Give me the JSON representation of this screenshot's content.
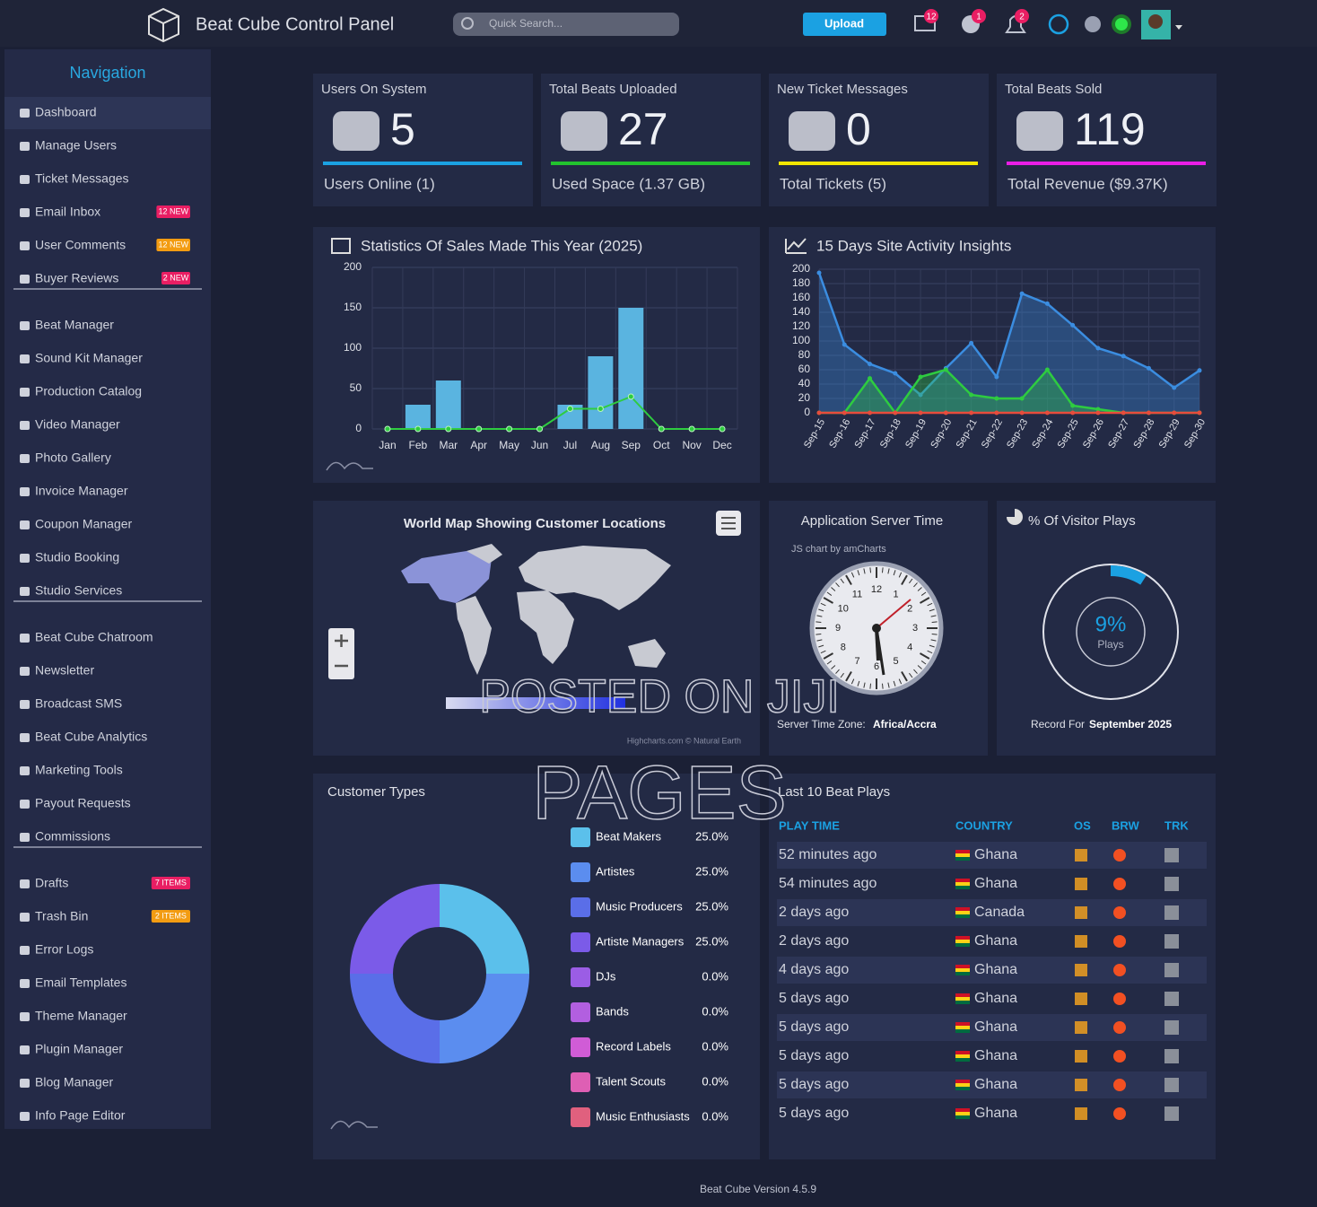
{
  "header": {
    "title": "Beat Cube Control Panel",
    "search_placeholder": "Quick Search...",
    "upload": "Upload",
    "badges": [
      12,
      1,
      2
    ]
  },
  "sidebar": {
    "title": "Navigation",
    "groups": [
      [
        {
          "label": "Dashboard"
        },
        {
          "label": "Manage Users"
        },
        {
          "label": "Ticket Messages"
        },
        {
          "label": "Email Inbox",
          "badge": "12 NEW",
          "badge_color": "#e91e63"
        },
        {
          "label": "User Comments",
          "badge": "12 NEW",
          "badge_color": "#f39c12"
        },
        {
          "label": "Buyer Reviews",
          "badge": "2 NEW",
          "badge_color": "#e91e63"
        }
      ],
      [
        {
          "label": "Beat Manager"
        },
        {
          "label": "Sound Kit Manager"
        },
        {
          "label": "Production Catalog"
        },
        {
          "label": "Video Manager"
        },
        {
          "label": "Photo Gallery"
        },
        {
          "label": "Invoice Manager"
        },
        {
          "label": "Coupon Manager"
        },
        {
          "label": "Studio Booking"
        },
        {
          "label": "Studio Services"
        }
      ],
      [
        {
          "label": "Beat Cube Chatroom"
        },
        {
          "label": "Newsletter"
        },
        {
          "label": "Broadcast SMS"
        },
        {
          "label": "Beat Cube Analytics"
        },
        {
          "label": "Marketing Tools"
        },
        {
          "label": "Payout Requests"
        },
        {
          "label": "Commissions"
        }
      ],
      [
        {
          "label": "Drafts",
          "badge": "7 ITEMS",
          "badge_color": "#e91e63"
        },
        {
          "label": "Trash Bin",
          "badge": "2 ITEMS",
          "badge_color": "#f39c12"
        },
        {
          "label": "Error Logs"
        },
        {
          "label": "Email Templates"
        },
        {
          "label": "Theme Manager"
        },
        {
          "label": "Plugin Manager"
        },
        {
          "label": "Blog Manager"
        },
        {
          "label": "Info Page Editor"
        }
      ]
    ]
  },
  "stats": [
    {
      "title": "Users On System",
      "value": 5,
      "footer": "Users Online (1)",
      "color": "#1ba1e2"
    },
    {
      "title": "Total Beats Uploaded",
      "value": 27,
      "footer": "Used Space (1.37 GB)",
      "color": "#22c32e"
    },
    {
      "title": "New Ticket Messages",
      "value": 0,
      "footer": "Total Tickets (5)",
      "color": "#f2e600"
    },
    {
      "title": "Total Beats Sold",
      "value": 119,
      "footer": "Total Revenue ($9.37K)",
      "color": "#e91ee6"
    }
  ],
  "sales_chart": {
    "type": "bar",
    "title": "Statistics Of Sales Made This Year (2025)",
    "categories": [
      "Jan",
      "Feb",
      "Mar",
      "Apr",
      "May",
      "Jun",
      "Jul",
      "Aug",
      "Sep",
      "Oct",
      "Nov",
      "Dec"
    ],
    "series": [
      {
        "type": "bar",
        "color": "#5ab4e0",
        "values": [
          0,
          30,
          60,
          0,
          0,
          0,
          30,
          90,
          150,
          0,
          0,
          0
        ]
      },
      {
        "type": "line",
        "color": "#2ecc40",
        "values": [
          0,
          0,
          0,
          0,
          0,
          0,
          25,
          25,
          40,
          0,
          0,
          0
        ]
      }
    ],
    "ylim": [
      0,
      200
    ],
    "yticks": [
      0,
      50,
      100,
      150,
      200
    ],
    "grid": true
  },
  "activity_chart": {
    "type": "area",
    "title": "15 Days Site Activity Insights",
    "x": [
      "Sep-15",
      "Sep-16",
      "Sep-17",
      "Sep-18",
      "Sep-19",
      "Sep-20",
      "Sep-21",
      "Sep-22",
      "Sep-23",
      "Sep-24",
      "Sep-25",
      "Sep-26",
      "Sep-27",
      "Sep-28",
      "Sep-29",
      "Sep-30"
    ],
    "series": [
      {
        "color": "#3b8de0",
        "values": [
          195,
          95,
          68,
          55,
          25,
          62,
          97,
          50,
          166,
          152,
          122,
          90,
          79,
          62,
          35,
          59
        ]
      },
      {
        "color": "#2ecc40",
        "values": [
          0,
          0,
          48,
          0,
          50,
          60,
          25,
          20,
          20,
          60,
          10,
          5,
          0,
          0,
          0,
          0
        ]
      },
      {
        "color": "#e74c3c",
        "values": [
          0,
          0,
          0,
          0,
          0,
          0,
          0,
          0,
          0,
          0,
          0,
          0,
          0,
          0,
          0,
          0
        ]
      }
    ],
    "ylim": [
      0,
      200
    ],
    "yticks": [
      0,
      20,
      40,
      60,
      80,
      100,
      120,
      140,
      160,
      180,
      200
    ],
    "grid": true
  },
  "map": {
    "title": "World Map Showing Customer Locations",
    "credit": "Highcharts.com © Natural Earth"
  },
  "server_time": {
    "title": "Application Server Time",
    "credit": "JS chart by amCharts",
    "dial": [
      12,
      1,
      2,
      3,
      4,
      5,
      6,
      7,
      8,
      9,
      10,
      11
    ],
    "zone_label": "Server Time Zone:",
    "zone": "Africa/Accra"
  },
  "visitor_plays": {
    "type": "gauge",
    "title": "% Of Visitor Plays",
    "value": 9,
    "value_label": "9%",
    "unit": "Plays",
    "caption": "Record For",
    "period": "September 2025"
  },
  "customer_types": {
    "type": "pie",
    "title": "Customer Types",
    "categories": [
      "Beat Makers",
      "Artistes",
      "Music Producers",
      "Artiste Managers",
      "DJs",
      "Bands",
      "Record Labels",
      "Talent Scouts",
      "Music Enthusiasts"
    ],
    "values": [
      25,
      25,
      25,
      25,
      0,
      0,
      0,
      0,
      0
    ],
    "value_labels": [
      "25.0%",
      "25.0%",
      "25.0%",
      "25.0%",
      "0.0%",
      "0.0%",
      "0.0%",
      "0.0%",
      "0.0%"
    ],
    "colors": [
      "#5bc0eb",
      "#5b8def",
      "#5a6ee8",
      "#7b5be8",
      "#9b5de5",
      "#b25fe0",
      "#d05cd6",
      "#de5fb4",
      "#e0607e"
    ]
  },
  "plays_table": {
    "title": "Last 10 Beat Plays",
    "columns": [
      "PLAY TIME",
      "COUNTRY",
      "OS",
      "BRW",
      "TRK"
    ],
    "rows": [
      [
        "52 minutes ago",
        "Ghana"
      ],
      [
        "54 minutes ago",
        "Ghana"
      ],
      [
        "2 days ago",
        "Canada"
      ],
      [
        "2 days ago",
        "Ghana"
      ],
      [
        "4 days ago",
        "Ghana"
      ],
      [
        "5 days ago",
        "Ghana"
      ],
      [
        "5 days ago",
        "Ghana"
      ],
      [
        "5 days ago",
        "Ghana"
      ],
      [
        "5 days ago",
        "Ghana"
      ],
      [
        "5 days ago",
        "Ghana"
      ]
    ]
  },
  "watermark": [
    "POSTED ON JIJI",
    "PAGES"
  ],
  "footer": "Beat Cube Version 4.5.9"
}
